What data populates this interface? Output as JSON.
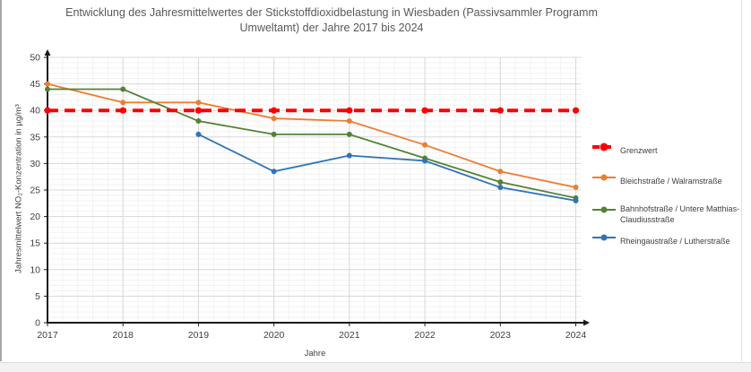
{
  "chart_data": {
    "type": "line",
    "title": "Entwicklung des Jahresmittelwertes der Stickstoffdioxidbelastung in Wiesbaden (Passivsammler Programm Umweltamt) der Jahre 2017 bis 2024",
    "title_lines": [
      "Entwicklung des Jahresmittelwertes der Stickstoffdioxidbelastung in Wiesbaden (Passivsammler Programm",
      "Umweltamt) der Jahre 2017 bis 2024"
    ],
    "xlabel": "Jahre",
    "ylabel": "Jahresmittelwert NO₂-Konzentration in µg/m³",
    "x": [
      2017,
      2018,
      2019,
      2020,
      2021,
      2022,
      2023,
      2024
    ],
    "y_ticks": [
      0,
      5,
      10,
      15,
      20,
      25,
      30,
      35,
      40,
      45,
      50
    ],
    "ylim": [
      0,
      50
    ],
    "grid": "major and minor gridlines on both axes",
    "legend_position": "right",
    "axis_color": "#1a1a1a",
    "major_grid_color": "#d9d9d9",
    "minor_grid_color": "#f2f2f2",
    "series": [
      {
        "name": "Grenzwert",
        "color": "#FF0000",
        "style": "dashed-thick",
        "values": [
          40,
          40,
          40,
          40,
          40,
          40,
          40,
          40
        ]
      },
      {
        "name": "Bleichstraße / Walramstraße",
        "color": "#ED7D31",
        "style": "solid",
        "values": [
          45,
          41.5,
          41.5,
          38.5,
          38,
          33.5,
          28.5,
          25.5
        ]
      },
      {
        "name": "Bahnhofstraße / Untere Matthias-Claudiusstraße",
        "color": "#548235",
        "style": "solid",
        "values": [
          44,
          44,
          38,
          35.5,
          35.5,
          31,
          26.5,
          23.5
        ]
      },
      {
        "name": "Rheingaustraße / Lutherstraße",
        "color": "#2E75B6",
        "style": "solid",
        "values": [
          null,
          null,
          35.5,
          28.5,
          31.5,
          30.5,
          25.5,
          23
        ]
      }
    ]
  }
}
